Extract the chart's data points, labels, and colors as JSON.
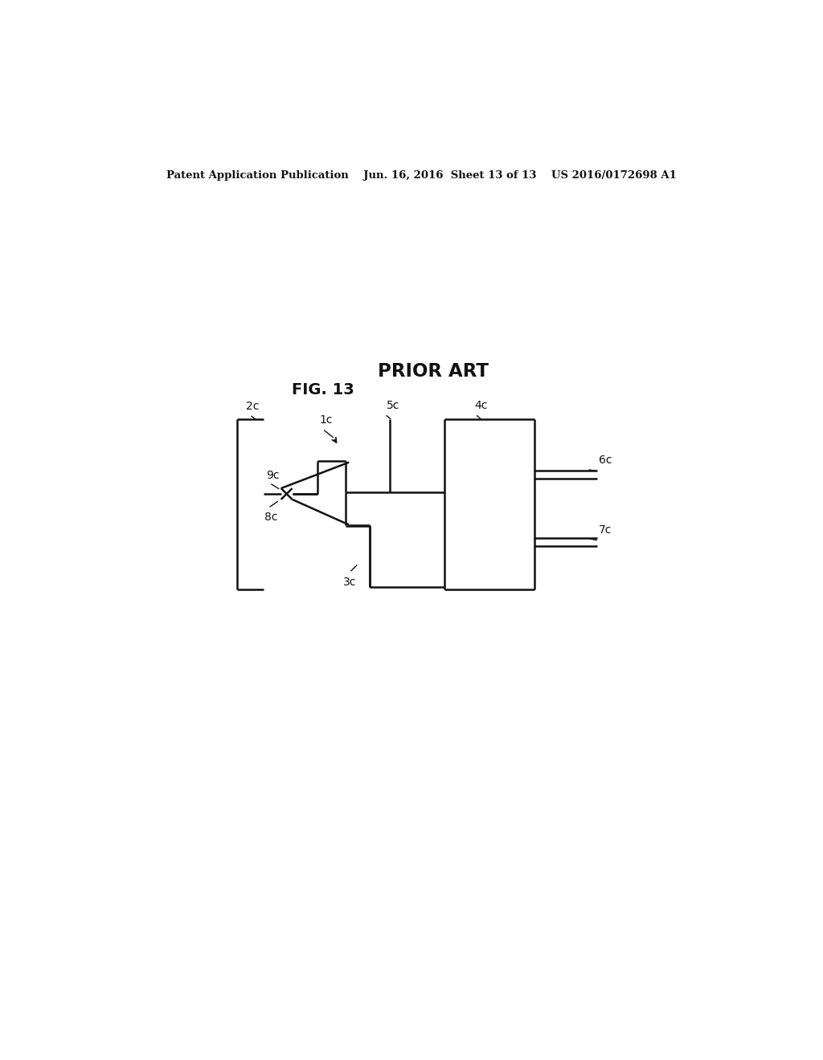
{
  "bg_color": "#ffffff",
  "line_color": "#111111",
  "lw": 1.8,
  "header": "Patent Application Publication    Jun. 16, 2016  Sheet 13 of 13    US 2016/0172698 A1",
  "prior_art": "PRIOR ART",
  "fig_label": "FIG. 13"
}
